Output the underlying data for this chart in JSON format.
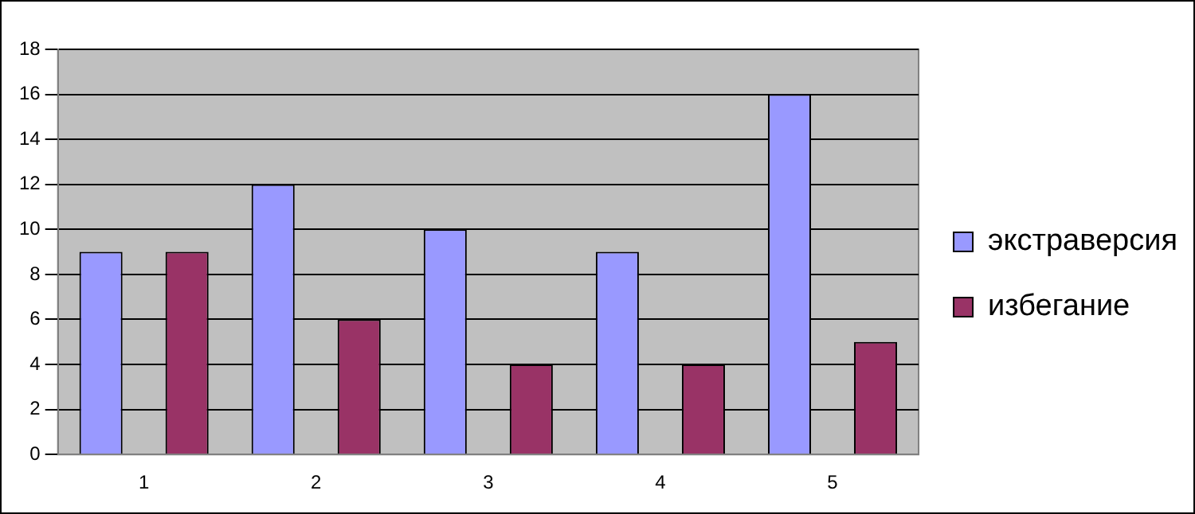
{
  "chart_data": {
    "type": "bar",
    "categories": [
      "1",
      "2",
      "3",
      "4",
      "5"
    ],
    "series": [
      {
        "name": "экстраверсия",
        "color": "#9999ff",
        "values": [
          9,
          12,
          10,
          9,
          16
        ]
      },
      {
        "name": "избегание",
        "color": "#993366",
        "values": [
          9,
          6,
          4,
          4,
          5
        ]
      }
    ],
    "ylim": [
      0,
      18
    ],
    "yticks": [
      0,
      2,
      4,
      6,
      8,
      10,
      12,
      14,
      16,
      18
    ],
    "grid": "y",
    "legend": "right"
  }
}
